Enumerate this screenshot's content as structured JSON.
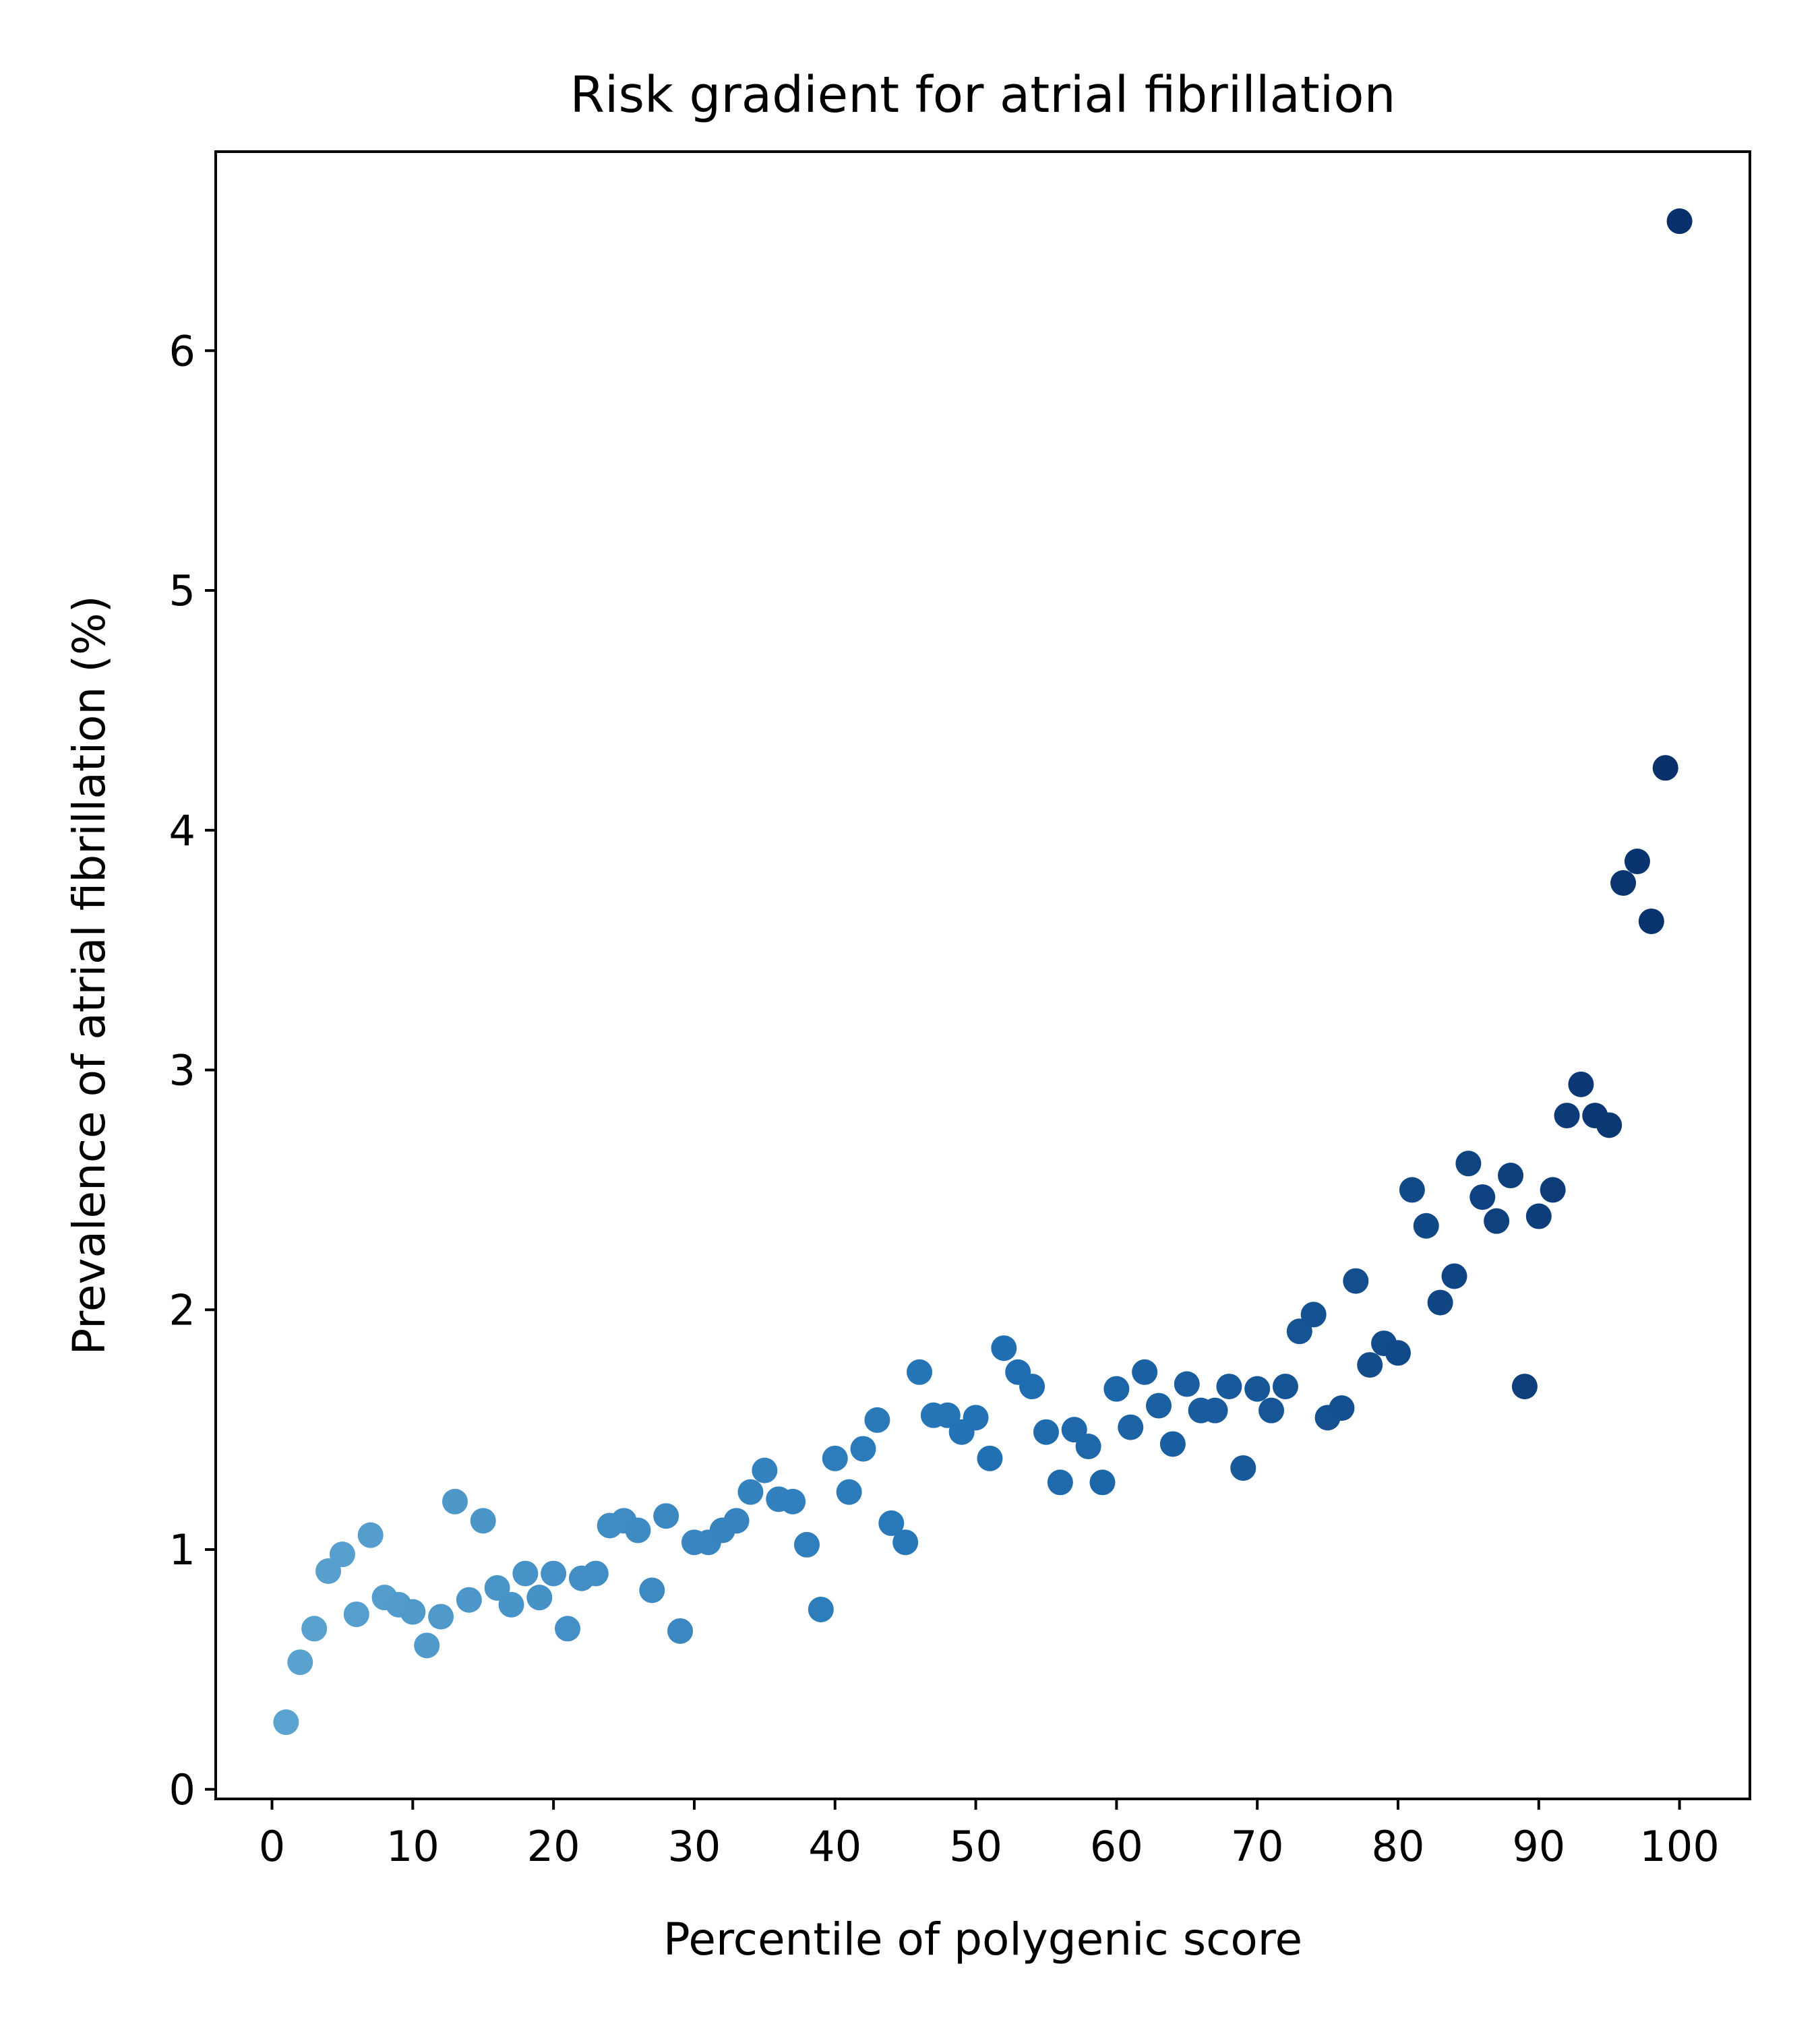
{
  "chart_data": {
    "type": "scatter",
    "title": "Risk gradient for atrial fibrillation",
    "xlabel": "Percentile of polygenic score",
    "ylabel": "Prevalence of atrial fibrillation (%)",
    "xlim": [
      -4,
      105
    ],
    "ylim": [
      -0.04,
      6.83
    ],
    "xticks": [
      0,
      10,
      20,
      30,
      40,
      50,
      60,
      70,
      80,
      90,
      100
    ],
    "yticks": [
      0,
      1,
      2,
      3,
      4,
      5,
      6
    ],
    "grid": false,
    "legend": "none",
    "colormap": {
      "low": "#5ba3d0",
      "mid": "#2171b5",
      "high": "#08306b"
    },
    "x": [
      1,
      2,
      3,
      4,
      5,
      6,
      7,
      8,
      9,
      10,
      11,
      12,
      13,
      14,
      15,
      16,
      17,
      18,
      19,
      20,
      21,
      22,
      23,
      24,
      25,
      26,
      27,
      28,
      29,
      30,
      31,
      32,
      33,
      34,
      35,
      36,
      37,
      38,
      39,
      40,
      41,
      42,
      43,
      44,
      45,
      46,
      47,
      48,
      49,
      50,
      51,
      52,
      53,
      54,
      55,
      56,
      57,
      58,
      59,
      60,
      61,
      62,
      63,
      64,
      65,
      66,
      67,
      68,
      69,
      70,
      71,
      72,
      73,
      74,
      75,
      76,
      77,
      78,
      79,
      80,
      81,
      82,
      83,
      84,
      85,
      86,
      87,
      88,
      89,
      90,
      91,
      92,
      93,
      94,
      95,
      96,
      97,
      98,
      99,
      100
    ],
    "y": [
      0.28,
      0.53,
      0.67,
      0.91,
      0.98,
      0.73,
      1.06,
      0.8,
      0.77,
      0.74,
      0.6,
      0.72,
      1.2,
      0.79,
      1.12,
      0.84,
      0.77,
      0.9,
      0.8,
      0.9,
      0.67,
      0.88,
      0.9,
      1.1,
      1.12,
      1.08,
      0.83,
      1.14,
      0.66,
      1.03,
      1.03,
      1.08,
      1.12,
      1.24,
      1.33,
      1.21,
      1.2,
      1.02,
      0.75,
      1.38,
      1.24,
      1.42,
      1.54,
      1.11,
      1.03,
      1.74,
      1.56,
      1.56,
      1.49,
      1.55,
      1.38,
      1.84,
      1.74,
      1.68,
      1.49,
      1.28,
      1.5,
      1.43,
      1.28,
      1.67,
      1.51,
      1.74,
      1.6,
      1.44,
      1.69,
      1.58,
      1.58,
      1.68,
      1.34,
      1.67,
      1.58,
      1.68,
      1.91,
      1.98,
      1.55,
      1.59,
      2.12,
      1.77,
      1.86,
      1.82,
      2.5,
      2.35,
      2.03,
      2.14,
      2.61,
      2.47,
      2.37,
      2.56,
      1.68,
      2.39,
      2.5,
      2.81,
      2.94,
      2.81,
      2.77,
      3.78,
      3.87,
      3.62,
      4.26,
      6.54
    ]
  }
}
